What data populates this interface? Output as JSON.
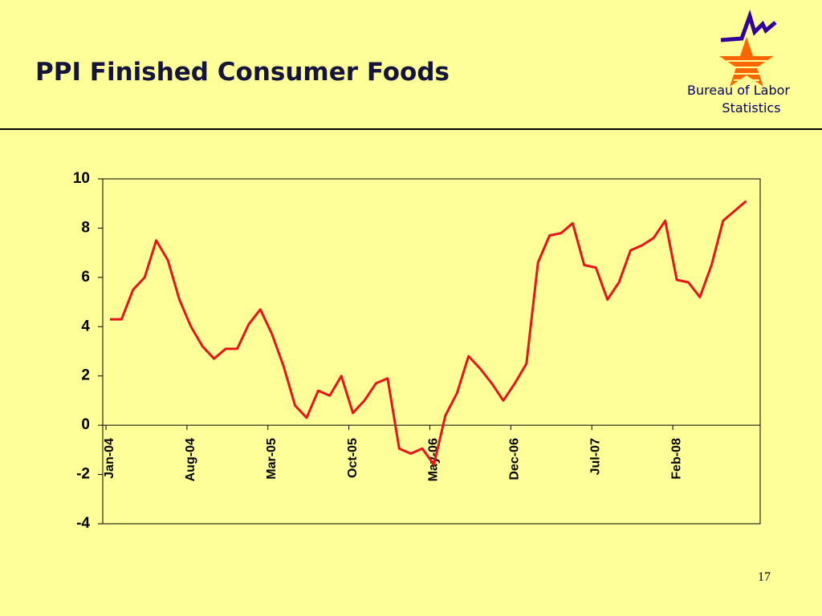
{
  "header": {
    "title": "PPI Finished Consumer Foods",
    "org": [
      "Bureau of Labor",
      "Statistics"
    ]
  },
  "chart_data": {
    "type": "line",
    "categories": [
      "Jan-04",
      null,
      null,
      null,
      null,
      null,
      null,
      "Aug-04",
      null,
      null,
      null,
      null,
      null,
      null,
      "Mar-05",
      null,
      null,
      null,
      null,
      null,
      null,
      "Oct-05",
      null,
      null,
      null,
      null,
      null,
      null,
      "May-06",
      null,
      null,
      null,
      null,
      null,
      null,
      "Dec-06",
      null,
      null,
      null,
      null,
      null,
      null,
      "Jul-07",
      null,
      null,
      null,
      null,
      null,
      null,
      "Feb-08",
      null,
      null,
      null,
      null,
      null,
      null
    ],
    "series": [
      {
        "color": "#e8141a",
        "values": [
          4.3,
          4.3,
          5.5,
          6.0,
          7.5,
          6.7,
          5.1,
          4.0,
          3.2,
          2.7,
          3.1,
          3.1,
          4.1,
          4.7,
          3.7,
          2.4,
          0.8,
          0.3,
          1.4,
          1.2,
          2.0,
          0.5,
          1.0,
          1.7,
          1.9,
          -0.95,
          -1.15,
          -0.95,
          -1.6,
          0.4,
          1.3,
          2.8,
          2.3,
          1.7,
          1.0,
          1.7,
          2.5,
          6.6,
          7.7,
          7.8,
          8.2,
          6.5,
          6.4,
          5.1,
          5.8,
          7.1,
          7.3,
          7.6,
          8.3,
          5.9,
          5.8,
          5.2,
          6.5,
          8.3,
          8.7,
          9.1
        ]
      }
    ],
    "ylim": [
      -4,
      10
    ],
    "yticks": [
      -4,
      -2,
      0,
      2,
      4,
      6,
      8,
      10
    ],
    "grid": false
  },
  "footer": {
    "page_number": "17"
  }
}
